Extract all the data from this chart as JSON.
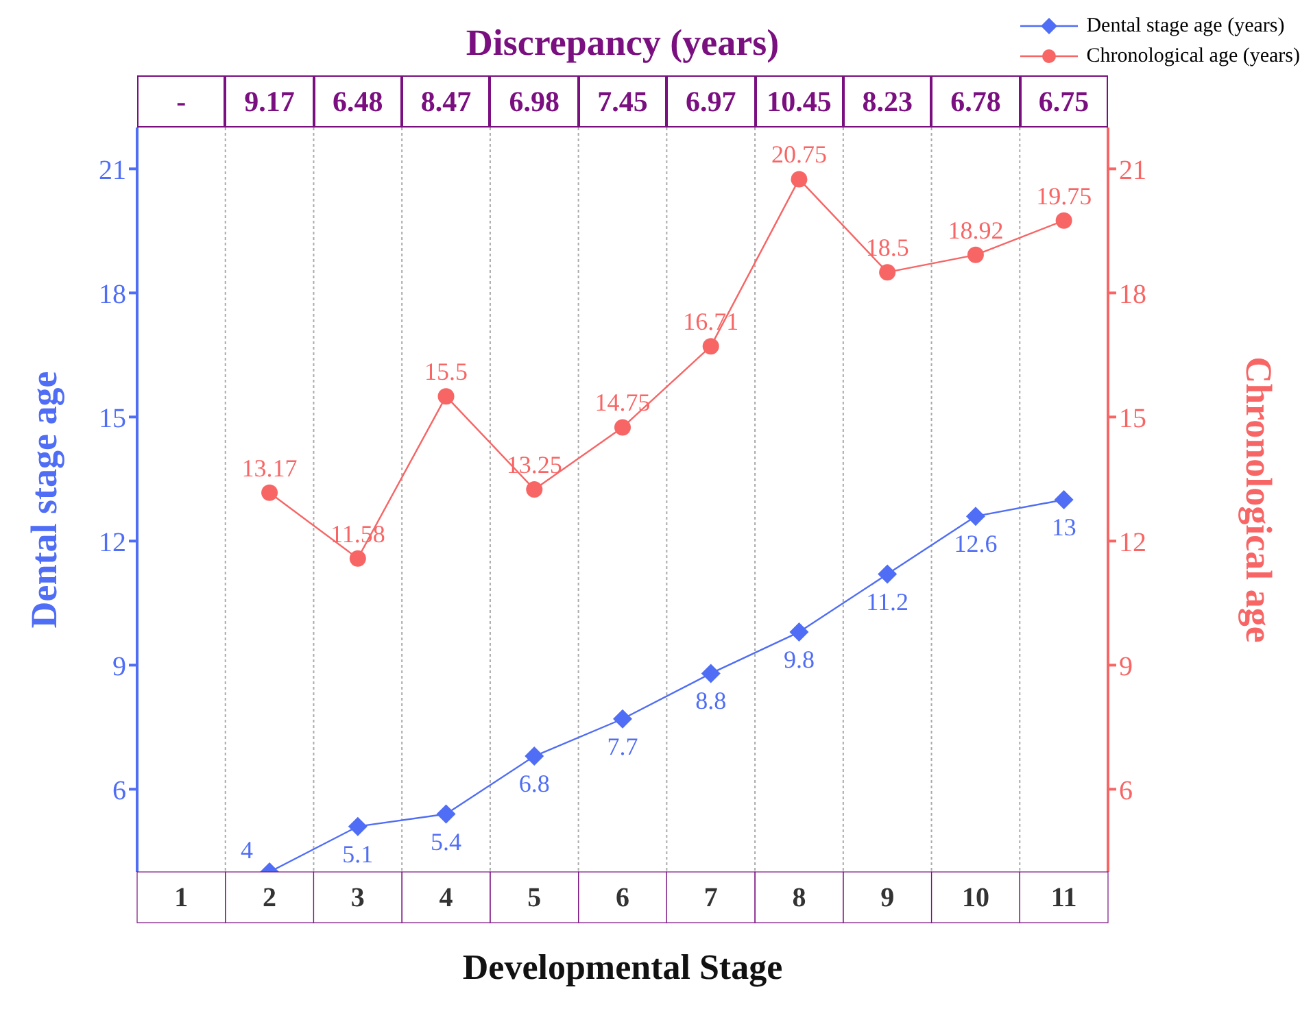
{
  "chart_data": {
    "type": "line",
    "title": "Discrepancy (years)",
    "xlabel": "Developmental Stage",
    "ylabel": "Dental stage age",
    "y2label": "Chronological age",
    "categories": [
      "1",
      "2",
      "3",
      "4",
      "5",
      "6",
      "7",
      "8",
      "9",
      "10",
      "11"
    ],
    "series": [
      {
        "name": "Dental stage age (years)",
        "color": "#4f6df5",
        "marker": "diamond",
        "axis": "y",
        "values": [
          null,
          4,
          5.1,
          5.4,
          6.8,
          7.7,
          8.8,
          9.8,
          11.2,
          12.6,
          13
        ],
        "data_labels": true
      },
      {
        "name": "Chronological age (years)",
        "color": "#f76565",
        "marker": "circle",
        "axis": "y2",
        "values": [
          null,
          13.17,
          11.58,
          15.5,
          13.25,
          14.75,
          16.71,
          20.75,
          18.5,
          18.92,
          19.75
        ],
        "data_labels": true
      }
    ],
    "annotations": [
      "-",
      "9.17",
      "6.48",
      "8.47",
      "6.98",
      "7.45",
      "6.97",
      "10.45",
      "8.23",
      "6.78",
      "6.75"
    ],
    "ylim": [
      4,
      22
    ],
    "yticks": [
      6,
      9,
      12,
      15,
      18,
      21
    ],
    "y2lim": [
      4,
      22
    ],
    "y2ticks": [
      6,
      9,
      12,
      15,
      18,
      21
    ],
    "grid": "x",
    "legend": "top right",
    "line_style": "solid"
  }
}
